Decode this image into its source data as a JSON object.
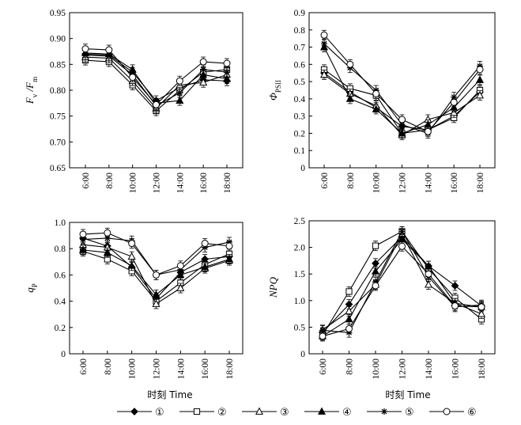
{
  "figure": {
    "legend": [
      "①",
      "②",
      "③",
      "④",
      "⑤",
      "⑥"
    ],
    "markers": [
      "diamond-filled",
      "square-open",
      "triangle-open",
      "triangle-filled",
      "star",
      "circle-open"
    ]
  },
  "chart_data": [
    {
      "id": "fvfm",
      "type": "line",
      "title": "",
      "ylabel_parts": [
        "F",
        "v",
        " /F",
        "m"
      ],
      "ylabel": "Fv/Fm",
      "xlabel": "",
      "categories": [
        "6:00",
        "8:00",
        "10:00",
        "12:00",
        "14:00",
        "16:00",
        "18:00"
      ],
      "ylim": [
        0.65,
        0.95
      ],
      "yticks": [
        "0.65",
        "0.70",
        "0.75",
        "0.80",
        "0.85",
        "0.90",
        "0.95"
      ],
      "series": [
        {
          "name": "①",
          "values": [
            0.87,
            0.868,
            0.835,
            0.78,
            0.805,
            0.82,
            0.818
          ]
        },
        {
          "name": "②",
          "values": [
            0.858,
            0.855,
            0.81,
            0.76,
            0.8,
            0.835,
            0.84
          ]
        },
        {
          "name": "③",
          "values": [
            0.864,
            0.862,
            0.818,
            0.765,
            0.81,
            0.815,
            0.83
          ]
        },
        {
          "name": "④",
          "values": [
            0.872,
            0.87,
            0.84,
            0.775,
            0.78,
            0.83,
            0.822
          ]
        },
        {
          "name": "⑤",
          "values": [
            0.868,
            0.866,
            0.83,
            0.77,
            0.795,
            0.84,
            0.835
          ]
        },
        {
          "name": "⑥",
          "values": [
            0.88,
            0.878,
            0.825,
            0.772,
            0.818,
            0.855,
            0.852
          ]
        }
      ]
    },
    {
      "id": "phipsii",
      "type": "line",
      "title": "",
      "ylabel_parts": [
        "Φ",
        "PSII"
      ],
      "ylabel": "ΦPSII",
      "xlabel": "",
      "categories": [
        "6:00",
        "8:00",
        "10:00",
        "12:00",
        "14:00",
        "16:00",
        "18:00"
      ],
      "ylim": [
        0,
        0.9
      ],
      "yticks": [
        "0",
        "0.1",
        "0.2",
        "0.3",
        "0.4",
        "0.5",
        "0.6",
        "0.7",
        "0.8",
        "0.9"
      ],
      "series": [
        {
          "name": "①",
          "values": [
            0.55,
            0.44,
            0.35,
            0.24,
            0.22,
            0.3,
            0.44
          ]
        },
        {
          "name": "②",
          "values": [
            0.57,
            0.46,
            0.42,
            0.2,
            0.22,
            0.29,
            0.45
          ]
        },
        {
          "name": "③",
          "values": [
            0.54,
            0.43,
            0.36,
            0.19,
            0.28,
            0.32,
            0.42
          ]
        },
        {
          "name": "④",
          "values": [
            0.7,
            0.4,
            0.34,
            0.2,
            0.25,
            0.35,
            0.51
          ]
        },
        {
          "name": "⑤",
          "values": [
            0.72,
            0.58,
            0.45,
            0.25,
            0.2,
            0.41,
            0.59
          ]
        },
        {
          "name": "⑥",
          "values": [
            0.77,
            0.6,
            0.43,
            0.28,
            0.21,
            0.38,
            0.57
          ]
        }
      ]
    },
    {
      "id": "qp",
      "type": "line",
      "title": "",
      "ylabel_parts": [
        "q",
        "P"
      ],
      "ylabel": "qP",
      "xlabel": "时刻 Time",
      "categories": [
        "6:00",
        "8:00",
        "10:00",
        "12:00",
        "14:00",
        "16:00",
        "18:00"
      ],
      "ylim": [
        0,
        1.0
      ],
      "yticks": [
        "0",
        "0.2",
        "0.4",
        "0.6",
        "0.8",
        "1.0"
      ],
      "series": [
        {
          "name": "①",
          "values": [
            0.88,
            0.82,
            0.66,
            0.42,
            0.62,
            0.72,
            0.74
          ]
        },
        {
          "name": "②",
          "values": [
            0.78,
            0.72,
            0.63,
            0.4,
            0.54,
            0.68,
            0.76
          ]
        },
        {
          "name": "③",
          "values": [
            0.83,
            0.81,
            0.74,
            0.38,
            0.5,
            0.65,
            0.71
          ]
        },
        {
          "name": "④",
          "values": [
            0.79,
            0.77,
            0.67,
            0.45,
            0.6,
            0.66,
            0.72
          ]
        },
        {
          "name": "⑤",
          "values": [
            0.87,
            0.88,
            0.86,
            0.6,
            0.64,
            0.81,
            0.85
          ]
        },
        {
          "name": "⑥",
          "values": [
            0.91,
            0.92,
            0.84,
            0.6,
            0.67,
            0.84,
            0.82
          ]
        }
      ]
    },
    {
      "id": "npq",
      "type": "line",
      "title": "",
      "ylabel_parts": [
        "NPQ"
      ],
      "ylabel": "NPQ",
      "xlabel": "时刻 Time",
      "categories": [
        "6:00",
        "8:00",
        "10:00",
        "12:00",
        "14:00",
        "16:00",
        "18:00"
      ],
      "ylim": [
        0,
        2.5
      ],
      "yticks": [
        "0",
        "0.5",
        "1.0",
        "1.5",
        "2.0",
        "2.5"
      ],
      "series": [
        {
          "name": "①",
          "values": [
            0.4,
            0.93,
            1.7,
            2.2,
            1.65,
            1.28,
            0.9
          ]
        },
        {
          "name": "②",
          "values": [
            0.35,
            1.17,
            2.03,
            2.3,
            1.6,
            1.05,
            0.65
          ]
        },
        {
          "name": "③",
          "values": [
            0.45,
            0.8,
            1.3,
            2.25,
            1.3,
            0.95,
            0.75
          ]
        },
        {
          "name": "④",
          "values": [
            0.33,
            0.65,
            1.55,
            2.15,
            1.65,
            0.95,
            0.88
          ]
        },
        {
          "name": "⑤",
          "values": [
            0.44,
            0.4,
            1.35,
            2.3,
            1.45,
            0.88,
            0.92
          ]
        },
        {
          "name": "⑥",
          "values": [
            0.33,
            0.47,
            1.28,
            2.02,
            1.5,
            0.9,
            0.88
          ]
        }
      ]
    }
  ]
}
